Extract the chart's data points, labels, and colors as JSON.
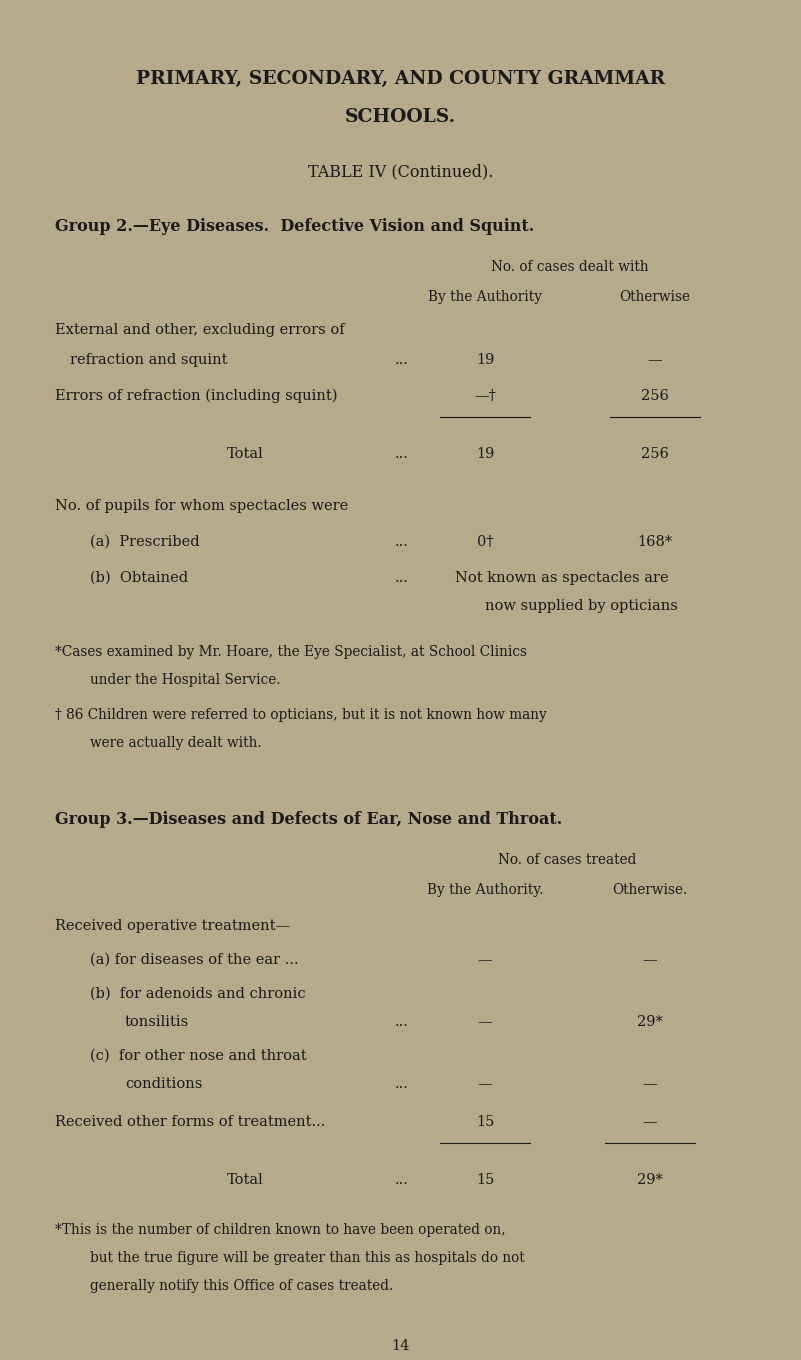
{
  "bg_color": "#b5aa8a",
  "text_color": "#1a1a1a",
  "page_width": 8.01,
  "page_height": 13.6,
  "title_line1": "PRIMARY, SECONDARY, AND COUNTY GRAMMAR",
  "title_line2": "SCHOOLS.",
  "subtitle": "TABLE IV (Continued).",
  "group2_heading": "Group 2.—Eye Diseases.  Defective Vision and Squint.",
  "group2_col_header1": "No. of cases dealt with",
  "group2_col_header2a": "By the Authority",
  "group2_col_header2b": "Otherwise",
  "spectacles_intro": "No. of pupils for whom spectacles were",
  "spectacles_a_label": "(a)  Prescribed",
  "spectacles_a_col1": "0†",
  "spectacles_a_col2": "168*",
  "spectacles_b_label": "(b)  Obtained",
  "spectacles_b_text": "Not known as spectacles are",
  "spectacles_b_text2": "now supplied by opticians",
  "footnote_star": "*Cases examined by Mr. Hoare, the Eye Specialist, at School Clinics",
  "footnote_star2": "under the Hospital Service.",
  "footnote_dagger": "† 86 Children were referred to opticians, but it is not known how many",
  "footnote_dagger2": "were actually dealt with.",
  "group3_heading": "Group 3.—Diseases and Defects of Ear, Nose and Throat.",
  "group3_col_header1": "No. of cases treated",
  "group3_col_header2a": "By the Authority.",
  "group3_col_header2b": "Otherwise.",
  "group3_intro": "Received operative treatment—",
  "group3_other_label": "Received other forms of treatment...",
  "group3_other_col1": "15",
  "group3_other_col2": "—",
  "group3_total_label": "Total",
  "group3_total_col1": "15",
  "group3_total_col2": "29*",
  "group3_footnote1": "*This is the number of children known to have been operated on,",
  "group3_footnote2": "but the true figure will be greater than this as hospitals do not",
  "group3_footnote3": "generally notify this Office of cases treated.",
  "page_number": "14"
}
